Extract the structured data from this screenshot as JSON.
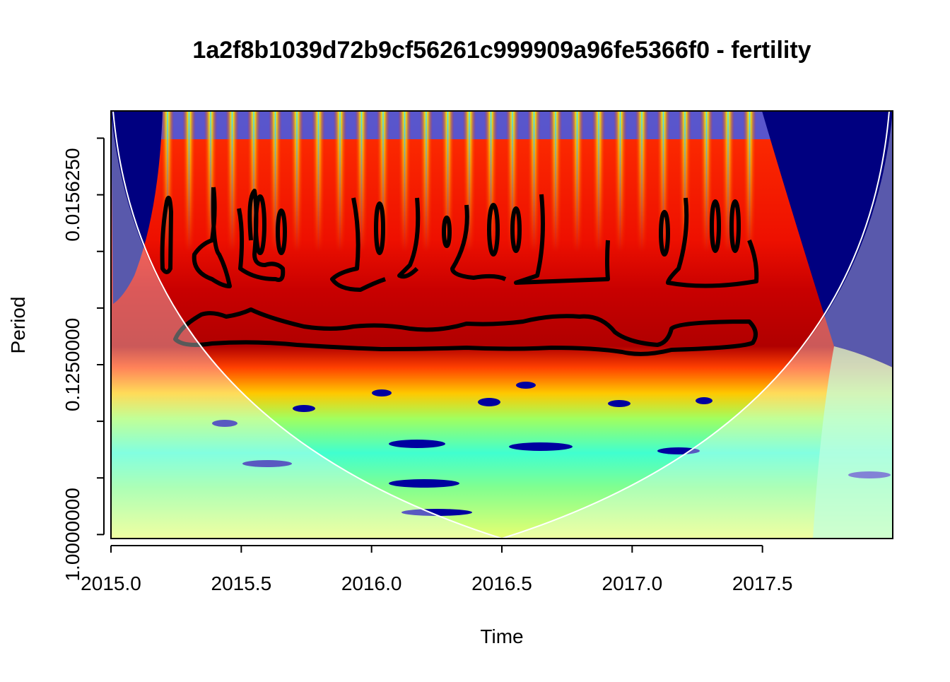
{
  "chart_data": {
    "type": "wavelet",
    "title": "1a2f8b1039d72b9cf56261c999909a96fe5366f0 - fertility",
    "x_label": "Time",
    "y_label": "Period",
    "xlim": [
      2015.0,
      2018.0
    ],
    "xticks": [
      {
        "value": 2015.0,
        "label": "2015.0"
      },
      {
        "value": 2015.5,
        "label": "2015.5"
      },
      {
        "value": 2016.0,
        "label": "2016.0"
      },
      {
        "value": 2016.5,
        "label": "2016.5"
      },
      {
        "value": 2017.0,
        "label": "2017.0"
      },
      {
        "value": 2017.5,
        "label": "2017.5"
      }
    ],
    "ylim": [
      0.0056,
      1.05
    ],
    "ylog": true,
    "yreverse": true,
    "yticks": [
      {
        "value": 0.015625,
        "label": "0.0156250"
      },
      {
        "value": 0.125,
        "label": "0.1250000"
      },
      {
        "value": 1,
        "label": "1.0000000"
      }
    ],
    "yticks_minor": [
      0.0078125,
      0.03125,
      0.0625,
      0.25,
      0.5
    ]
  }
}
